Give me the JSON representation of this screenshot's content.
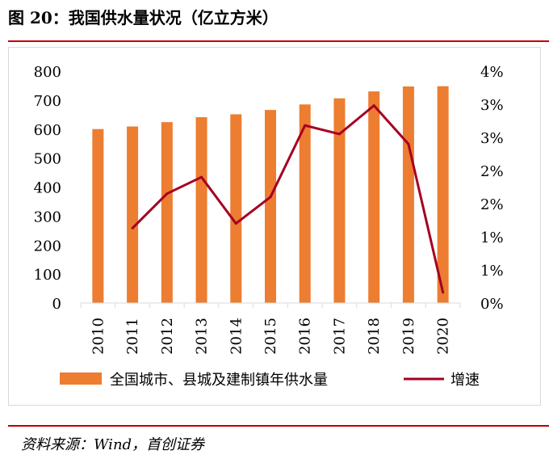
{
  "figure": {
    "title": "图 20：我国供水量状况（亿立方米）",
    "source": "资料来源：Wind，首创证券"
  },
  "chart_data": {
    "type": "bar",
    "categories": [
      "2010",
      "2011",
      "2012",
      "2013",
      "2014",
      "2015",
      "2016",
      "2017",
      "2018",
      "2019",
      "2020"
    ],
    "ylim": [
      0,
      800
    ],
    "yticks": [
      "0",
      "100",
      "200",
      "300",
      "400",
      "500",
      "600",
      "700",
      "800"
    ],
    "y2lim": [
      0,
      3.5
    ],
    "y2ticks": [
      "0%",
      "1%",
      "1%",
      "2%",
      "2%",
      "3%",
      "3%",
      "4%"
    ],
    "series": [
      {
        "name": "全国城市、县城及建制镇年供水量",
        "type": "bar",
        "axis": "left",
        "color": "#ed7d31",
        "values": [
          600,
          609,
          624,
          641,
          651,
          666,
          685,
          706,
          730,
          747,
          748
        ]
      },
      {
        "name": "增速",
        "type": "line",
        "axis": "right",
        "color": "#a50021",
        "values": [
          null,
          1.13,
          1.65,
          1.9,
          1.2,
          1.6,
          2.68,
          2.55,
          2.98,
          2.4,
          0.16
        ]
      }
    ],
    "legend": "bottom",
    "grid": false
  }
}
